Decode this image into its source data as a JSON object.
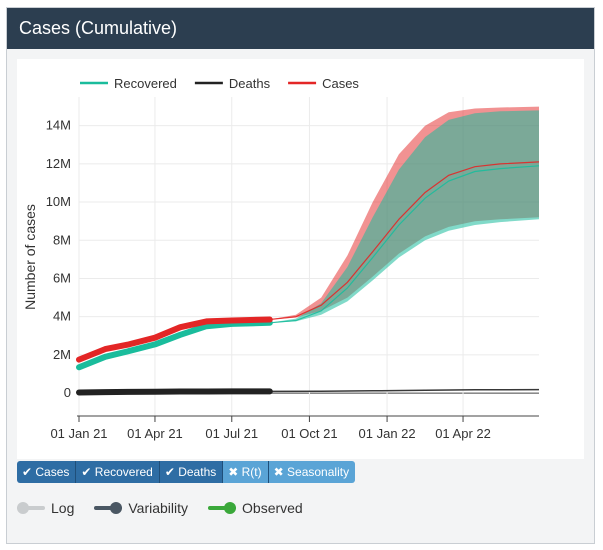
{
  "panel": {
    "title": "Cases (Cumulative)"
  },
  "chart_data": {
    "type": "line",
    "title": "",
    "xlabel": "",
    "ylabel": "Number of cases",
    "x_ticks": [
      "01 Jan 21",
      "01 Apr 21",
      "01 Jul 21",
      "01 Oct 21",
      "01 Jan 22",
      "01 Apr 22"
    ],
    "x_range": [
      "2021-01-01",
      "2022-06-30"
    ],
    "y_ticks": [
      "0",
      "2M",
      "4M",
      "6M",
      "8M",
      "10M",
      "12M",
      "14M"
    ],
    "y_tick_values": [
      0,
      2,
      4,
      6,
      8,
      10,
      12,
      14
    ],
    "ylim": [
      -1.2,
      15.5
    ],
    "y_unit": "millions",
    "grid": true,
    "legend_position": "top",
    "observed_end": "2021-08-15",
    "series": [
      {
        "name": "Recovered",
        "color": "#1abc9c",
        "observed": [
          [
            "2021-01-01",
            1.35
          ],
          [
            "2021-02-01",
            1.9
          ],
          [
            "2021-03-01",
            2.2
          ],
          [
            "2021-04-01",
            2.55
          ],
          [
            "2021-05-01",
            3.05
          ],
          [
            "2021-06-01",
            3.5
          ],
          [
            "2021-07-01",
            3.62
          ],
          [
            "2021-08-15",
            3.68
          ]
        ],
        "projection": [
          [
            "2021-08-15",
            3.68
          ],
          [
            "2021-09-15",
            3.8
          ],
          [
            "2021-10-15",
            4.3
          ],
          [
            "2021-11-15",
            5.5
          ],
          [
            "2021-12-15",
            7.1
          ],
          [
            "2022-01-15",
            8.8
          ],
          [
            "2022-02-15",
            10.2
          ],
          [
            "2022-03-15",
            11.1
          ],
          [
            "2022-04-15",
            11.6
          ],
          [
            "2022-05-15",
            11.75
          ],
          [
            "2022-06-30",
            11.9
          ]
        ],
        "band_low": [
          [
            "2021-08-15",
            3.68
          ],
          [
            "2021-09-15",
            3.75
          ],
          [
            "2021-10-15",
            4.1
          ],
          [
            "2021-11-15",
            4.8
          ],
          [
            "2021-12-15",
            5.9
          ],
          [
            "2022-01-15",
            7.1
          ],
          [
            "2022-02-15",
            8.0
          ],
          [
            "2022-03-15",
            8.5
          ],
          [
            "2022-04-15",
            8.8
          ],
          [
            "2022-05-15",
            8.95
          ],
          [
            "2022-06-30",
            9.1
          ]
        ],
        "band_high": [
          [
            "2021-08-15",
            3.68
          ],
          [
            "2021-09-15",
            3.9
          ],
          [
            "2021-10-15",
            4.7
          ],
          [
            "2021-11-15",
            6.6
          ],
          [
            "2021-12-15",
            9.2
          ],
          [
            "2022-01-15",
            11.7
          ],
          [
            "2022-02-15",
            13.4
          ],
          [
            "2022-03-15",
            14.3
          ],
          [
            "2022-04-15",
            14.65
          ],
          [
            "2022-05-15",
            14.75
          ],
          [
            "2022-06-30",
            14.8
          ]
        ]
      },
      {
        "name": "Deaths",
        "color": "#222222",
        "observed": [
          [
            "2021-01-01",
            0.03
          ],
          [
            "2021-02-01",
            0.05
          ],
          [
            "2021-03-01",
            0.06
          ],
          [
            "2021-04-01",
            0.07
          ],
          [
            "2021-05-01",
            0.08
          ],
          [
            "2021-06-01",
            0.085
          ],
          [
            "2021-07-01",
            0.09
          ],
          [
            "2021-08-15",
            0.09
          ]
        ],
        "projection": [
          [
            "2021-08-15",
            0.09
          ],
          [
            "2021-10-15",
            0.1
          ],
          [
            "2021-12-15",
            0.12
          ],
          [
            "2022-02-15",
            0.15
          ],
          [
            "2022-04-15",
            0.17
          ],
          [
            "2022-06-30",
            0.18
          ]
        ]
      },
      {
        "name": "Cases",
        "color": "#e32626",
        "observed": [
          [
            "2021-01-01",
            1.75
          ],
          [
            "2021-02-01",
            2.3
          ],
          [
            "2021-03-01",
            2.55
          ],
          [
            "2021-04-01",
            2.9
          ],
          [
            "2021-05-01",
            3.45
          ],
          [
            "2021-06-01",
            3.75
          ],
          [
            "2021-07-01",
            3.8
          ],
          [
            "2021-08-15",
            3.85
          ]
        ],
        "projection": [
          [
            "2021-08-15",
            3.85
          ],
          [
            "2021-09-15",
            4.0
          ],
          [
            "2021-10-15",
            4.6
          ],
          [
            "2021-11-15",
            5.8
          ],
          [
            "2021-12-15",
            7.4
          ],
          [
            "2022-01-15",
            9.1
          ],
          [
            "2022-02-15",
            10.5
          ],
          [
            "2022-03-15",
            11.4
          ],
          [
            "2022-04-15",
            11.85
          ],
          [
            "2022-05-15",
            12.0
          ],
          [
            "2022-06-30",
            12.1
          ]
        ],
        "band_low": [
          [
            "2021-08-15",
            3.85
          ],
          [
            "2021-09-15",
            3.95
          ],
          [
            "2021-10-15",
            4.3
          ],
          [
            "2021-11-15",
            5.0
          ],
          [
            "2021-12-15",
            6.1
          ],
          [
            "2022-01-15",
            7.3
          ],
          [
            "2022-02-15",
            8.2
          ],
          [
            "2022-03-15",
            8.7
          ],
          [
            "2022-04-15",
            9.0
          ],
          [
            "2022-05-15",
            9.1
          ],
          [
            "2022-06-30",
            9.2
          ]
        ],
        "band_high": [
          [
            "2021-08-15",
            3.85
          ],
          [
            "2021-09-15",
            4.1
          ],
          [
            "2021-10-15",
            5.0
          ],
          [
            "2021-11-15",
            7.2
          ],
          [
            "2021-12-15",
            10.0
          ],
          [
            "2022-01-15",
            12.5
          ],
          [
            "2022-02-15",
            14.0
          ],
          [
            "2022-03-15",
            14.7
          ],
          [
            "2022-04-15",
            14.9
          ],
          [
            "2022-05-15",
            14.95
          ],
          [
            "2022-06-30",
            15.0
          ]
        ]
      }
    ]
  },
  "series_buttons": [
    {
      "label": "Cases",
      "icon": "check-icon",
      "active": true
    },
    {
      "label": "Recovered",
      "icon": "check-icon",
      "active": true
    },
    {
      "label": "Deaths",
      "icon": "check-icon",
      "active": true
    },
    {
      "label": "R(t)",
      "icon": "cross-icon",
      "active": false
    },
    {
      "label": "Seasonality",
      "icon": "cross-icon",
      "active": false
    }
  ],
  "toggles": [
    {
      "label": "Log",
      "on": false,
      "color": "#c9ccce"
    },
    {
      "label": "Variability",
      "on": true,
      "color": "#4a5763"
    },
    {
      "label": "Observed",
      "on": true,
      "color": "#3aa83a"
    }
  ]
}
